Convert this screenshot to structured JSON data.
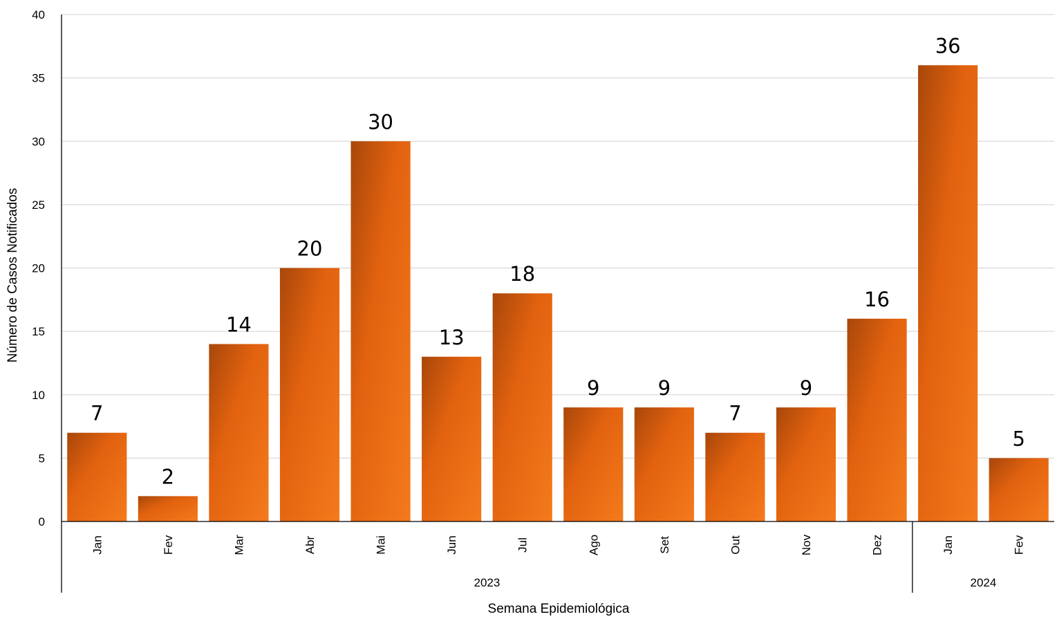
{
  "chart_data": {
    "type": "bar",
    "title": "",
    "xlabel": "Semana Epidemiológica",
    "ylabel": "Número de Casos Notificados",
    "ylim": [
      0,
      40
    ],
    "yticks": [
      0,
      5,
      10,
      15,
      20,
      25,
      30,
      35,
      40
    ],
    "grid": "horizontal",
    "legend": "none",
    "colors": {
      "bar_dark": "#a8470a",
      "bar_mid": "#e2620f",
      "bar_light": "#f47a1c",
      "grid": "#d9d9d9",
      "axis": "#000000"
    },
    "categories": [
      "Jan",
      "Fev",
      "Mar",
      "Abr",
      "Mai",
      "Jun",
      "Jul",
      "Ago",
      "Set",
      "Out",
      "Nov",
      "Dez",
      "Jan",
      "Fev"
    ],
    "values": [
      7,
      2,
      14,
      20,
      30,
      13,
      18,
      9,
      9,
      7,
      9,
      16,
      36,
      5
    ],
    "groups": [
      {
        "label": "2023",
        "count": 12
      },
      {
        "label": "2024",
        "count": 2
      }
    ]
  }
}
